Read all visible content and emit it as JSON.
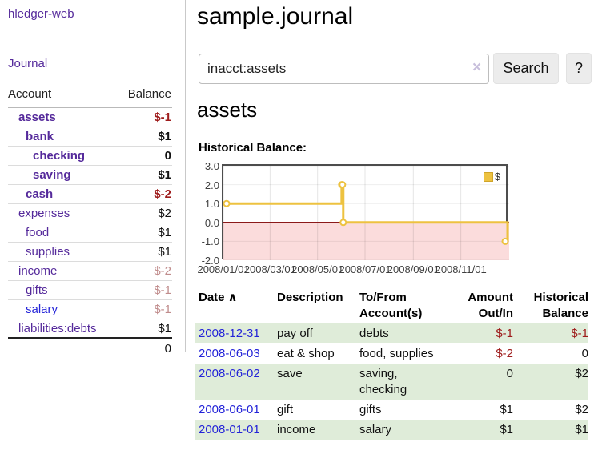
{
  "colors": {
    "link_purple": "#552a9b",
    "link_blue": "#2424d8",
    "negative_strong": "#9e1b1b",
    "negative_muted": "#c08c8c",
    "row_green": "#dfecd9",
    "series_gold": "#EDC240",
    "zero_line_red": "#8b1a1a",
    "negative_region_pink": "#fbdcdc"
  },
  "sidebar": {
    "app_title": "hledger-web",
    "nav_journal": "Journal",
    "accounts": {
      "header_account": "Account",
      "header_balance": "Balance",
      "rows": [
        {
          "name": "assets",
          "level": 1,
          "bold": true,
          "link_style": "purple",
          "balance": "$-1",
          "balance_style": "negative"
        },
        {
          "name": "bank",
          "level": 2,
          "bold": true,
          "link_style": "purple",
          "balance": "$1",
          "balance_style": "normal"
        },
        {
          "name": "checking",
          "level": 3,
          "bold": true,
          "link_style": "purple",
          "balance": "0",
          "balance_style": "normal"
        },
        {
          "name": "saving",
          "level": 3,
          "bold": true,
          "link_style": "purple",
          "balance": "$1",
          "balance_style": "normal"
        },
        {
          "name": "cash",
          "level": 2,
          "bold": true,
          "link_style": "purple",
          "balance": "$-2",
          "balance_style": "negative"
        },
        {
          "name": "expenses",
          "level": 1,
          "bold": false,
          "link_style": "purple",
          "balance": "$2",
          "balance_style": "normal"
        },
        {
          "name": "food",
          "level": 2,
          "bold": false,
          "link_style": "purple",
          "balance": "$1",
          "balance_style": "normal"
        },
        {
          "name": "supplies",
          "level": 2,
          "bold": false,
          "link_style": "purple",
          "balance": "$1",
          "balance_style": "normal"
        },
        {
          "name": "income",
          "level": 1,
          "bold": false,
          "link_style": "purple",
          "balance": "$-2",
          "balance_style": "negative-muted"
        },
        {
          "name": "gifts",
          "level": 2,
          "bold": false,
          "link_style": "purple",
          "balance": "$-1",
          "balance_style": "negative-muted"
        },
        {
          "name": "salary",
          "level": 2,
          "bold": false,
          "link_style": "blue",
          "balance": "$-1",
          "balance_style": "negative-muted"
        },
        {
          "name": "liabilities:debts",
          "level": 1,
          "bold": false,
          "link_style": "purple",
          "balance": "$1",
          "balance_style": "normal"
        }
      ],
      "total_balance": "0"
    }
  },
  "main": {
    "title": "sample.journal",
    "search": {
      "value": "inacct:assets",
      "clear_icon": "×",
      "search_button": "Search",
      "help_button": "?"
    },
    "account_heading": "assets",
    "chart_heading": "Historical Balance:",
    "chart_data": {
      "type": "line",
      "step": true,
      "title": "Historical Balance",
      "series": [
        {
          "name": "$",
          "color": "#EDC240",
          "points": [
            [
              "2008-01-01",
              1
            ],
            [
              "2008-06-01",
              2
            ],
            [
              "2008-06-02",
              2
            ],
            [
              "2008-06-03",
              0
            ],
            [
              "2008-12-31",
              -1
            ]
          ]
        }
      ],
      "xrange": [
        "2008-01-01",
        "2008-12-31"
      ],
      "ylim": [
        -2,
        3
      ],
      "yticks": [
        "3.0",
        "2.0",
        "1.0",
        "0.0",
        "-1.0",
        "-2.0"
      ],
      "xticks": [
        "2008/01/01",
        "2008/03/01",
        "2008/05/01",
        "2008/07/01",
        "2008/09/01",
        "2008/11/01"
      ],
      "legend": [
        {
          "label": "$",
          "color": "#EDC240"
        }
      ],
      "legend_position": "top-right",
      "grid": true,
      "negative_region": true
    },
    "register": {
      "headers": {
        "date": "Date",
        "description": "Description",
        "accounts": "To/From Account(s)",
        "amount": "Amount Out/In",
        "balance": "Historical Balance"
      },
      "sort_icon": "∧",
      "rows": [
        {
          "date": "2008-12-31",
          "description": "pay off",
          "accounts": "debts",
          "amount": "$-1",
          "amount_negative": true,
          "balance": "$-1",
          "balance_negative": true
        },
        {
          "date": "2008-06-03",
          "description": "eat & shop",
          "accounts": "food, supplies",
          "amount": "$-2",
          "amount_negative": true,
          "balance": "0",
          "balance_negative": false
        },
        {
          "date": "2008-06-02",
          "description": "save",
          "accounts": "saving, checking",
          "amount": "0",
          "amount_negative": false,
          "balance": "$2",
          "balance_negative": false
        },
        {
          "date": "2008-06-01",
          "description": "gift",
          "accounts": "gifts",
          "amount": "$1",
          "amount_negative": false,
          "balance": "$2",
          "balance_negative": false
        },
        {
          "date": "2008-01-01",
          "description": "income",
          "accounts": "salary",
          "amount": "$1",
          "amount_negative": false,
          "balance": "$1",
          "balance_negative": false
        }
      ]
    }
  }
}
